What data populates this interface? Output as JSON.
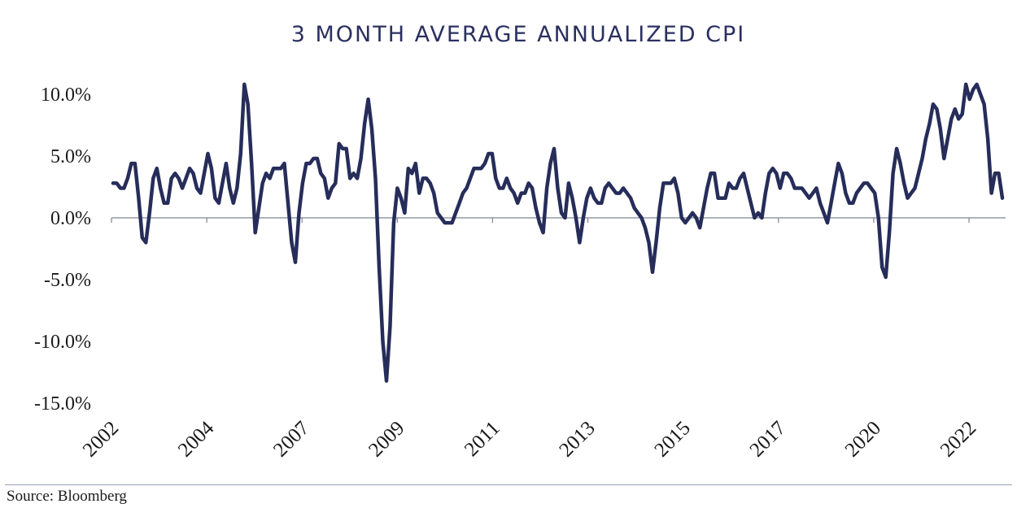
{
  "chart_data": {
    "type": "line",
    "title": "3 MONTH AVERAGE ANNUALIZED CPI",
    "xlabel": "",
    "ylabel": "",
    "y_tick_labels": [
      "10.0%",
      "5.0%",
      "0.0%",
      "-5.0%",
      "-10.0%",
      "-15.0%"
    ],
    "y_tick_values": [
      10,
      5,
      0,
      -5,
      -10,
      -15
    ],
    "ylim": [
      -15,
      10
    ],
    "x_tick_labels": [
      "2002",
      "2004",
      "2007",
      "2009",
      "2011",
      "2013",
      "2015",
      "2017",
      "2020",
      "2022"
    ],
    "grid": false,
    "legend": "none",
    "line_color": "#262d5a",
    "series": [
      {
        "values": [
          2.8,
          2.8,
          2.4,
          2.4,
          3.2,
          4.4,
          4.4,
          1.6,
          -1.6,
          -2.0,
          0.4,
          3.2,
          4.0,
          2.4,
          1.2,
          1.2,
          3.2,
          3.6,
          3.2,
          2.4,
          3.2,
          4.0,
          3.6,
          2.4,
          2.0,
          3.6,
          5.2,
          4.0,
          1.6,
          1.2,
          2.8,
          4.4,
          2.4,
          1.2,
          2.4,
          5.2,
          10.8,
          9.2,
          4.4,
          -1.2,
          0.8,
          2.8,
          3.6,
          3.2,
          4.0,
          4.0,
          4.0,
          4.4,
          1.2,
          -2.0,
          -3.6,
          0.4,
          2.8,
          4.4,
          4.4,
          4.8,
          4.8,
          3.6,
          3.2,
          1.6,
          2.4,
          2.8,
          6.0,
          5.6,
          5.6,
          3.2,
          3.6,
          3.2,
          4.8,
          7.6,
          9.6,
          7.2,
          3.2,
          -4.0,
          -10.0,
          -13.2,
          -8.8,
          -0.4,
          2.4,
          1.6,
          0.4,
          4.0,
          3.6,
          4.4,
          2.0,
          3.2,
          3.2,
          2.8,
          2.0,
          0.4,
          0.0,
          -0.4,
          -0.4,
          -0.4,
          0.4,
          1.2,
          2.0,
          2.4,
          3.2,
          4.0,
          4.0,
          4.0,
          4.4,
          5.2,
          5.2,
          3.2,
          2.4,
          2.4,
          3.2,
          2.4,
          2.0,
          1.2,
          2.0,
          2.0,
          2.8,
          2.4,
          0.8,
          -0.4,
          -1.2,
          2.4,
          4.4,
          5.6,
          2.4,
          0.4,
          0.0,
          2.8,
          1.6,
          0.0,
          -2.0,
          0.0,
          1.6,
          2.4,
          1.6,
          1.2,
          1.2,
          2.4,
          2.8,
          2.4,
          2.0,
          2.0,
          2.4,
          2.0,
          1.6,
          0.8,
          0.4,
          0.0,
          -0.8,
          -2.0,
          -4.4,
          -2.0,
          0.8,
          2.8,
          2.8,
          2.8,
          3.2,
          2.0,
          0.0,
          -0.4,
          0.0,
          0.4,
          0.0,
          -0.8,
          0.8,
          2.4,
          3.6,
          3.6,
          1.6,
          1.6,
          1.6,
          2.8,
          2.4,
          2.4,
          3.2,
          3.6,
          2.4,
          1.2,
          0.0,
          0.4,
          0.0,
          2.0,
          3.6,
          4.0,
          3.6,
          2.4,
          3.6,
          3.6,
          3.2,
          2.4,
          2.4,
          2.4,
          2.0,
          1.6,
          2.0,
          2.4,
          1.2,
          0.4,
          -0.4,
          1.2,
          2.8,
          4.4,
          3.6,
          2.0,
          1.2,
          1.2,
          2.0,
          2.4,
          2.8,
          2.8,
          2.4,
          2.0,
          0.0,
          -4.0,
          -4.8,
          -1.2,
          3.6,
          5.6,
          4.4,
          2.8,
          1.6,
          2.0,
          2.4,
          3.6,
          4.8,
          6.4,
          7.6,
          9.2,
          8.8,
          7.2,
          4.8,
          6.4,
          8.0,
          8.8,
          8.0,
          8.4,
          10.8,
          9.6,
          10.4,
          10.8,
          10.0,
          9.2,
          6.4,
          2.0,
          3.6,
          3.6,
          1.6
        ]
      }
    ]
  },
  "footer": {
    "source": "Source: Bloomberg"
  }
}
